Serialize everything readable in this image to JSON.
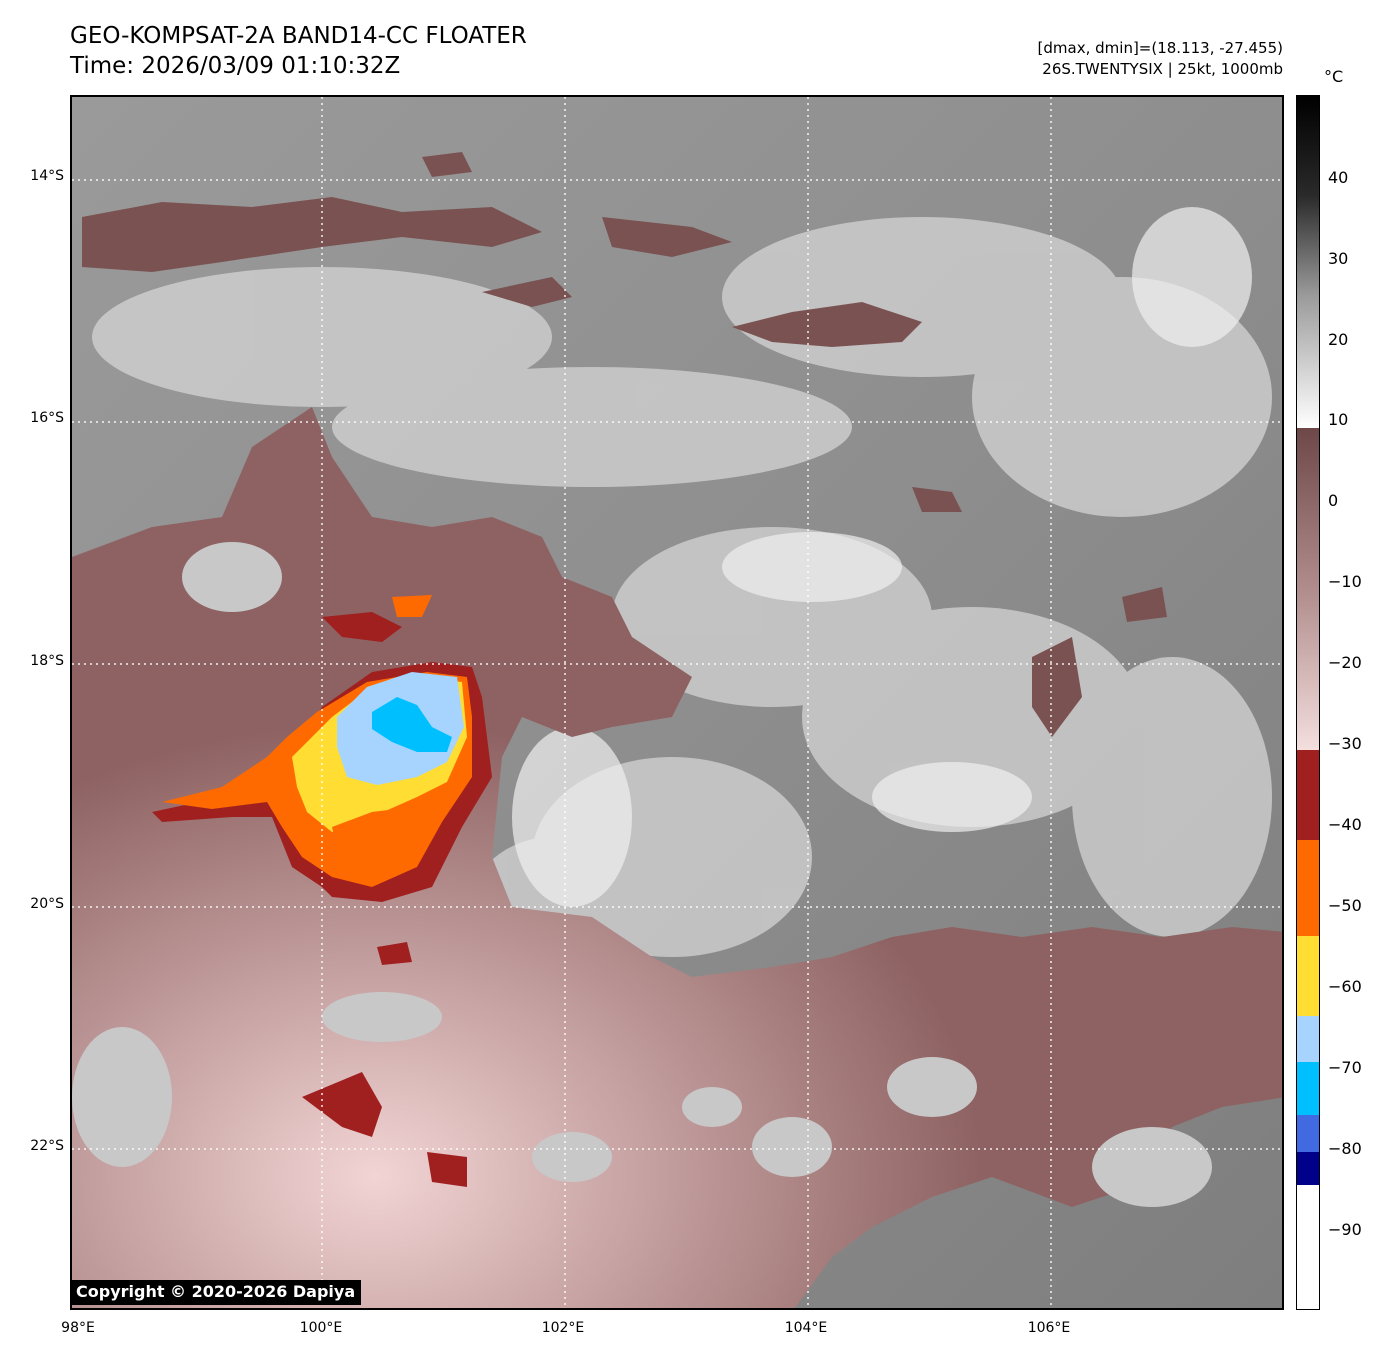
{
  "header": {
    "title": "GEO-KOMPSAT-2A BAND14-CC FLOATER",
    "time": "Time: 2026/03/09 01:10:32Z",
    "range": "[dmax, dmin]=(18.113, -27.455)",
    "storm": "26S.TWENTYSIX | 25kt, 1000mb"
  },
  "map": {
    "lat_labels": [
      "14°S",
      "16°S",
      "18°S",
      "20°S",
      "22°S"
    ],
    "lon_labels": [
      "98°E",
      "100°E",
      "102°E",
      "104°E",
      "106°E"
    ],
    "copyright": "Copyright © 2020-2026 Dapiya",
    "colors": {
      "background_gray": "#8c8c8c",
      "warm_gray_light": "#d8d8d8",
      "brown": "#7a5252",
      "pink": "#e8c4c4",
      "dark_red": "#a02020",
      "orange": "#ff6a00",
      "yellow": "#ffdd33",
      "light_blue": "#a6d4ff",
      "cyan": "#00bfff"
    }
  },
  "colorbar": {
    "unit": "°C",
    "ticks": [
      "40",
      "30",
      "20",
      "10",
      "0",
      "−10",
      "−20",
      "−30",
      "−40",
      "−50",
      "−60",
      "−70",
      "−80",
      "−90"
    ],
    "segments": [
      {
        "color": "#000000",
        "label": "warm black"
      },
      {
        "color": "#5a5a5a",
        "label": "dark gray"
      },
      {
        "color": "#f4f4f4",
        "label": "white"
      },
      {
        "color": "#7a5252",
        "label": "brown"
      },
      {
        "color": "#f0d8d8",
        "label": "pink"
      },
      {
        "color": "#a02020",
        "label": "dark red"
      },
      {
        "color": "#ff6a00",
        "label": "orange"
      },
      {
        "color": "#ffdd33",
        "label": "yellow"
      },
      {
        "color": "#a6d4ff",
        "label": "light blue"
      },
      {
        "color": "#00bfff",
        "label": "cyan"
      },
      {
        "color": "#4169e1",
        "label": "royal blue"
      },
      {
        "color": "#00008b",
        "label": "navy"
      },
      {
        "color": "#ffffff",
        "label": "white"
      }
    ]
  }
}
